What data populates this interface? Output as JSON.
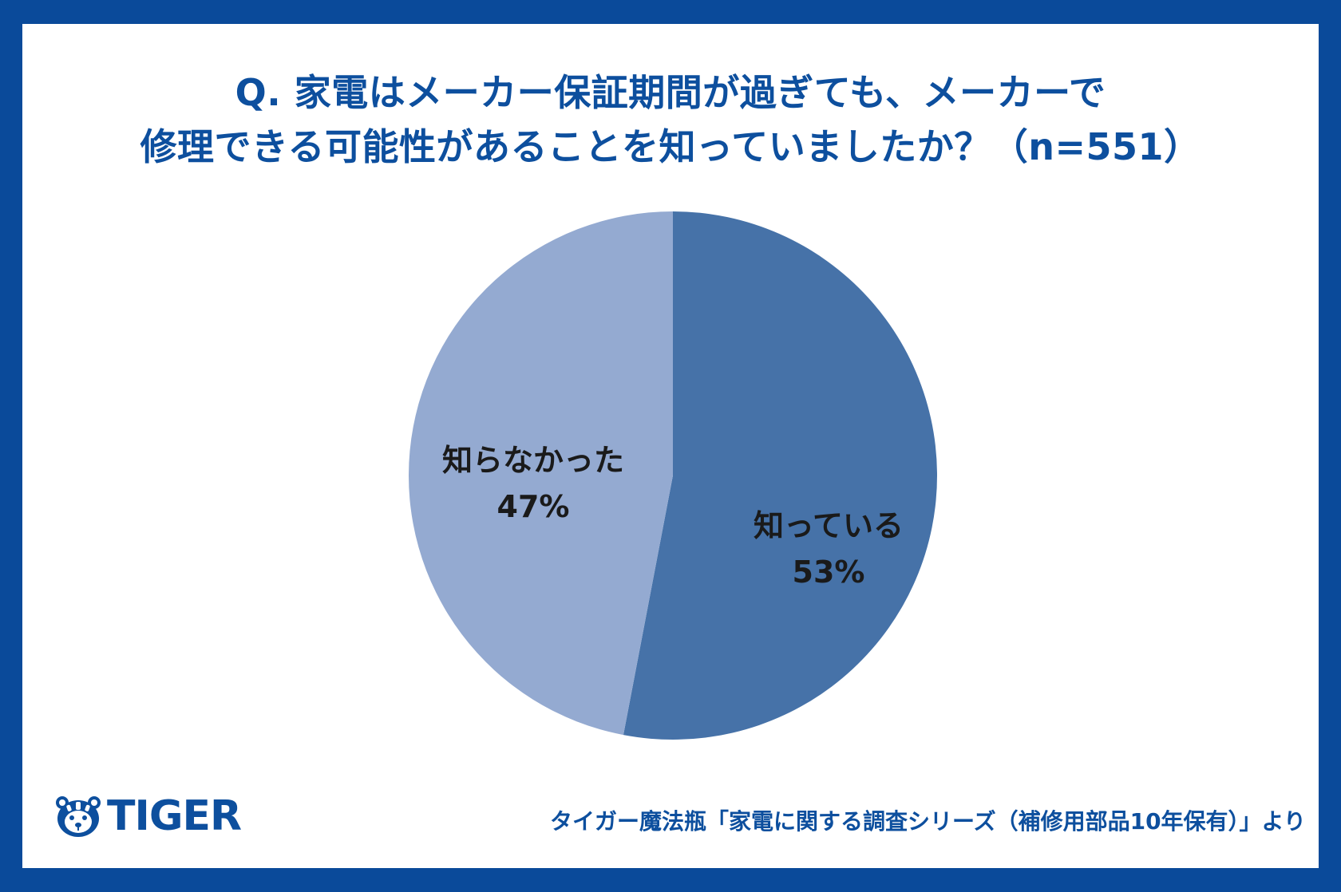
{
  "header": {
    "title_line1": "Q. 家電はメーカー保証期間が過ぎても、メーカーで",
    "title_line2": "修理できる可能性があることを知っていましたか？（n=551）"
  },
  "chart_data": {
    "type": "pie",
    "title": "Q. 家電はメーカー保証期間が過ぎても、メーカーで修理できる可能性があることを知っていましたか？（n=551）",
    "slices": [
      {
        "label": "知っている",
        "value": 53,
        "display": "53%",
        "color": "#4672a8"
      },
      {
        "label": "知らなかった",
        "value": 47,
        "display": "47%",
        "color": "#94aad1"
      }
    ],
    "start_angle_deg": 0,
    "direction": "clockwise",
    "legend": "none"
  },
  "logo": {
    "text": "TIGER",
    "icon": "tiger-face-icon",
    "color": "#0d4f9e"
  },
  "footer": {
    "source": "タイガー魔法瓶「家電に関する調査シリーズ（補修用部品10年保有）」より"
  },
  "colors": {
    "frame": "#0a4a9a",
    "accent": "#0d4f9e"
  }
}
